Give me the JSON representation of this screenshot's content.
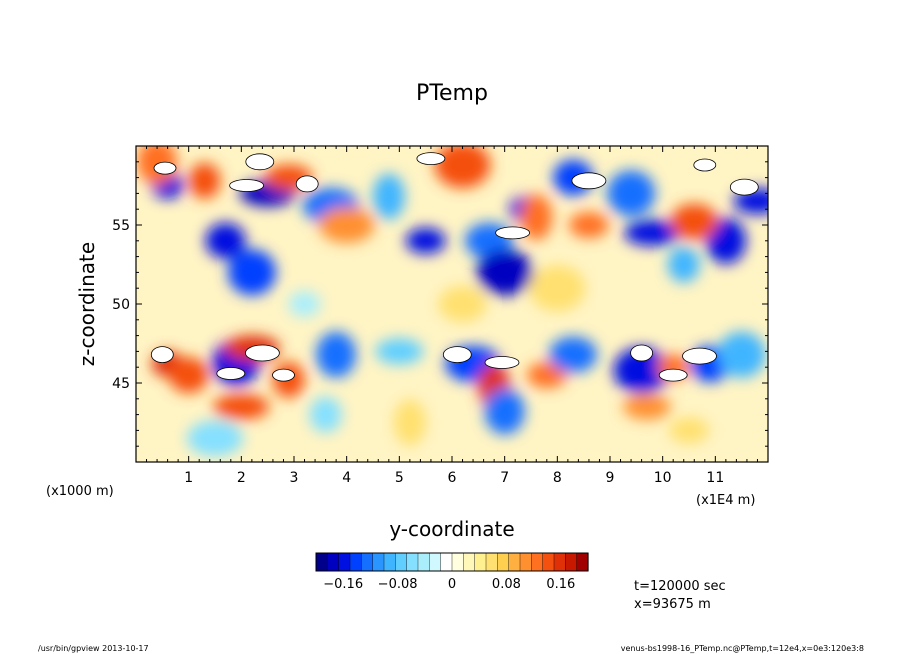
{
  "chart_data": {
    "type": "heatmap",
    "title": "PTemp",
    "xlabel": "y-coordinate",
    "ylabel": "z-coordinate",
    "x_unit_label": "(x1E4 m)",
    "y_unit_label": "(x1000 m)",
    "xlim": [
      0,
      12
    ],
    "ylim": [
      40,
      60
    ],
    "x_ticks": [
      "1",
      "2",
      "3",
      "4",
      "5",
      "6",
      "7",
      "8",
      "9",
      "10",
      "11"
    ],
    "y_ticks": [
      "45",
      "50",
      "55"
    ],
    "colorbar": {
      "min": -0.2,
      "max": 0.2,
      "labels": [
        "−0.16",
        "−0.08",
        "0",
        "0.08",
        "0.16"
      ],
      "label_values": [
        -0.16,
        -0.08,
        0,
        0.08,
        0.16
      ],
      "colors": [
        "#00008b",
        "#0000c0",
        "#0010e0",
        "#0040ff",
        "#1570ff",
        "#2a95ff",
        "#40b5ff",
        "#60cfff",
        "#85e0ff",
        "#aaeefc",
        "#d0f8ff",
        "#ffffff",
        "#ffffe0",
        "#fff8b8",
        "#fff090",
        "#ffe070",
        "#ffcf50",
        "#ffb040",
        "#ff9030",
        "#ff7020",
        "#f45010",
        "#e03008",
        "#c81800",
        "#a00000"
      ]
    },
    "annotations": {
      "time": "t=120000 sec",
      "position": "x=93675 m"
    },
    "features": [
      {
        "y": 0.6,
        "z": 57.5,
        "v": -0.16
      },
      {
        "y": 1.7,
        "z": 54,
        "v": -0.16
      },
      {
        "y": 2.2,
        "z": 52,
        "v": -0.14
      },
      {
        "y": 2.5,
        "z": 57,
        "v": -0.18
      },
      {
        "y": 1.3,
        "z": 57.8,
        "v": 0.14
      },
      {
        "y": 0.4,
        "z": 59,
        "v": 0.12
      },
      {
        "y": 2.9,
        "z": 58,
        "v": 0.14
      },
      {
        "y": 3.7,
        "z": 56.2,
        "v": -0.12
      },
      {
        "y": 4.8,
        "z": 56.8,
        "v": -0.1
      },
      {
        "y": 5.5,
        "z": 54,
        "v": -0.16
      },
      {
        "y": 6.7,
        "z": 54,
        "v": -0.12
      },
      {
        "y": 7.0,
        "z": 52,
        "v": -0.18
      },
      {
        "y": 7.4,
        "z": 56,
        "v": -0.16
      },
      {
        "y": 8.3,
        "z": 58,
        "v": -0.14
      },
      {
        "y": 9.4,
        "z": 57,
        "v": -0.12
      },
      {
        "y": 9.8,
        "z": 54.5,
        "v": -0.16
      },
      {
        "y": 10.4,
        "z": 52.5,
        "v": -0.1
      },
      {
        "y": 11.2,
        "z": 54,
        "v": -0.16
      },
      {
        "y": 11.8,
        "z": 56.5,
        "v": -0.16
      },
      {
        "y": 4.0,
        "z": 55,
        "v": 0.1
      },
      {
        "y": 7.6,
        "z": 55.5,
        "v": 0.12
      },
      {
        "y": 8.6,
        "z": 55,
        "v": 0.12
      },
      {
        "y": 10.6,
        "z": 55.2,
        "v": 0.14
      },
      {
        "y": 6.2,
        "z": 58.8,
        "v": 0.14
      },
      {
        "y": 0.6,
        "z": 46.2,
        "v": 0.16
      },
      {
        "y": 1.0,
        "z": 45.5,
        "v": 0.14
      },
      {
        "y": 1.9,
        "z": 46.3,
        "v": -0.16
      },
      {
        "y": 2.2,
        "z": 47.2,
        "v": 0.16
      },
      {
        "y": 2.9,
        "z": 45.2,
        "v": 0.14
      },
      {
        "y": 3.8,
        "z": 46.8,
        "v": -0.12
      },
      {
        "y": 5.0,
        "z": 47.0,
        "v": -0.08
      },
      {
        "y": 6.4,
        "z": 46.2,
        "v": -0.14
      },
      {
        "y": 6.8,
        "z": 44.8,
        "v": 0.16
      },
      {
        "y": 7.8,
        "z": 45.5,
        "v": 0.12
      },
      {
        "y": 8.3,
        "z": 46.8,
        "v": -0.12
      },
      {
        "y": 9.6,
        "z": 45.8,
        "v": -0.16
      },
      {
        "y": 10.2,
        "z": 46.0,
        "v": 0.12
      },
      {
        "y": 10.9,
        "z": 46.2,
        "v": -0.14
      },
      {
        "y": 11.5,
        "z": 46.8,
        "v": -0.1
      },
      {
        "y": 2.0,
        "z": 43.5,
        "v": 0.14
      },
      {
        "y": 3.6,
        "z": 43,
        "v": -0.06
      },
      {
        "y": 7.0,
        "z": 43.2,
        "v": -0.12
      },
      {
        "y": 9.7,
        "z": 43.5,
        "v": 0.1
      },
      {
        "y": 1.5,
        "z": 41.5,
        "v": -0.06
      },
      {
        "y": 5.2,
        "z": 42.5,
        "v": 0.06
      },
      {
        "y": 10.5,
        "z": 42,
        "v": 0.06
      },
      {
        "y": 6.2,
        "z": 50,
        "v": 0.06
      },
      {
        "y": 8.0,
        "z": 51,
        "v": 0.06
      },
      {
        "y": 3.2,
        "z": 50,
        "v": -0.04
      }
    ],
    "white_patches": [
      {
        "y": 0.55,
        "z": 58.6
      },
      {
        "y": 2.35,
        "z": 59.0
      },
      {
        "y": 2.1,
        "z": 57.5
      },
      {
        "y": 3.25,
        "z": 57.6
      },
      {
        "y": 5.6,
        "z": 59.2
      },
      {
        "y": 8.6,
        "z": 57.8
      },
      {
        "y": 10.8,
        "z": 58.8
      },
      {
        "y": 11.55,
        "z": 57.4
      },
      {
        "y": 7.15,
        "z": 54.5
      },
      {
        "y": 0.5,
        "z": 46.8
      },
      {
        "y": 1.8,
        "z": 45.6
      },
      {
        "y": 2.4,
        "z": 46.9
      },
      {
        "y": 2.8,
        "z": 45.5
      },
      {
        "y": 6.1,
        "z": 46.8
      },
      {
        "y": 6.95,
        "z": 46.3
      },
      {
        "y": 9.6,
        "z": 46.9
      },
      {
        "y": 10.2,
        "z": 45.5
      },
      {
        "y": 10.7,
        "z": 46.7
      }
    ]
  },
  "footer": {
    "left": "/usr/bin/gpview  2013-10-17",
    "right": "venus-bs1998-16_PTemp.nc@PTemp,t=12e4,x=0e3:120e3:8"
  }
}
